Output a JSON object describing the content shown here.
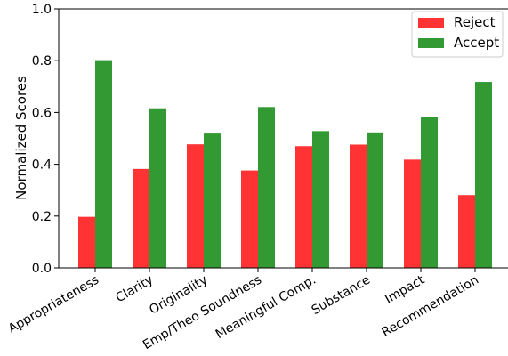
{
  "chart_data": {
    "type": "bar",
    "title": "",
    "xlabel": "",
    "ylabel": "Normalized Scores",
    "ylim": [
      0,
      1.0
    ],
    "yticks": [
      "0.0",
      "0.2",
      "0.4",
      "0.6",
      "0.8",
      "1.0"
    ],
    "grid": false,
    "legend_position": "top-right",
    "categories": [
      "Appropriateness",
      "Clarity",
      "Originality",
      "Emp/Theo Soundness",
      "Meaningful Comp.",
      "Substance",
      "Impact",
      "Recommendation"
    ],
    "series": [
      {
        "name": "Reject",
        "color": "#ff3333",
        "values": [
          0.197,
          0.382,
          0.477,
          0.376,
          0.47,
          0.476,
          0.418,
          0.281
        ]
      },
      {
        "name": "Accept",
        "color": "#339933",
        "values": [
          0.802,
          0.616,
          0.522,
          0.621,
          0.528,
          0.523,
          0.581,
          0.718
        ]
      }
    ]
  }
}
